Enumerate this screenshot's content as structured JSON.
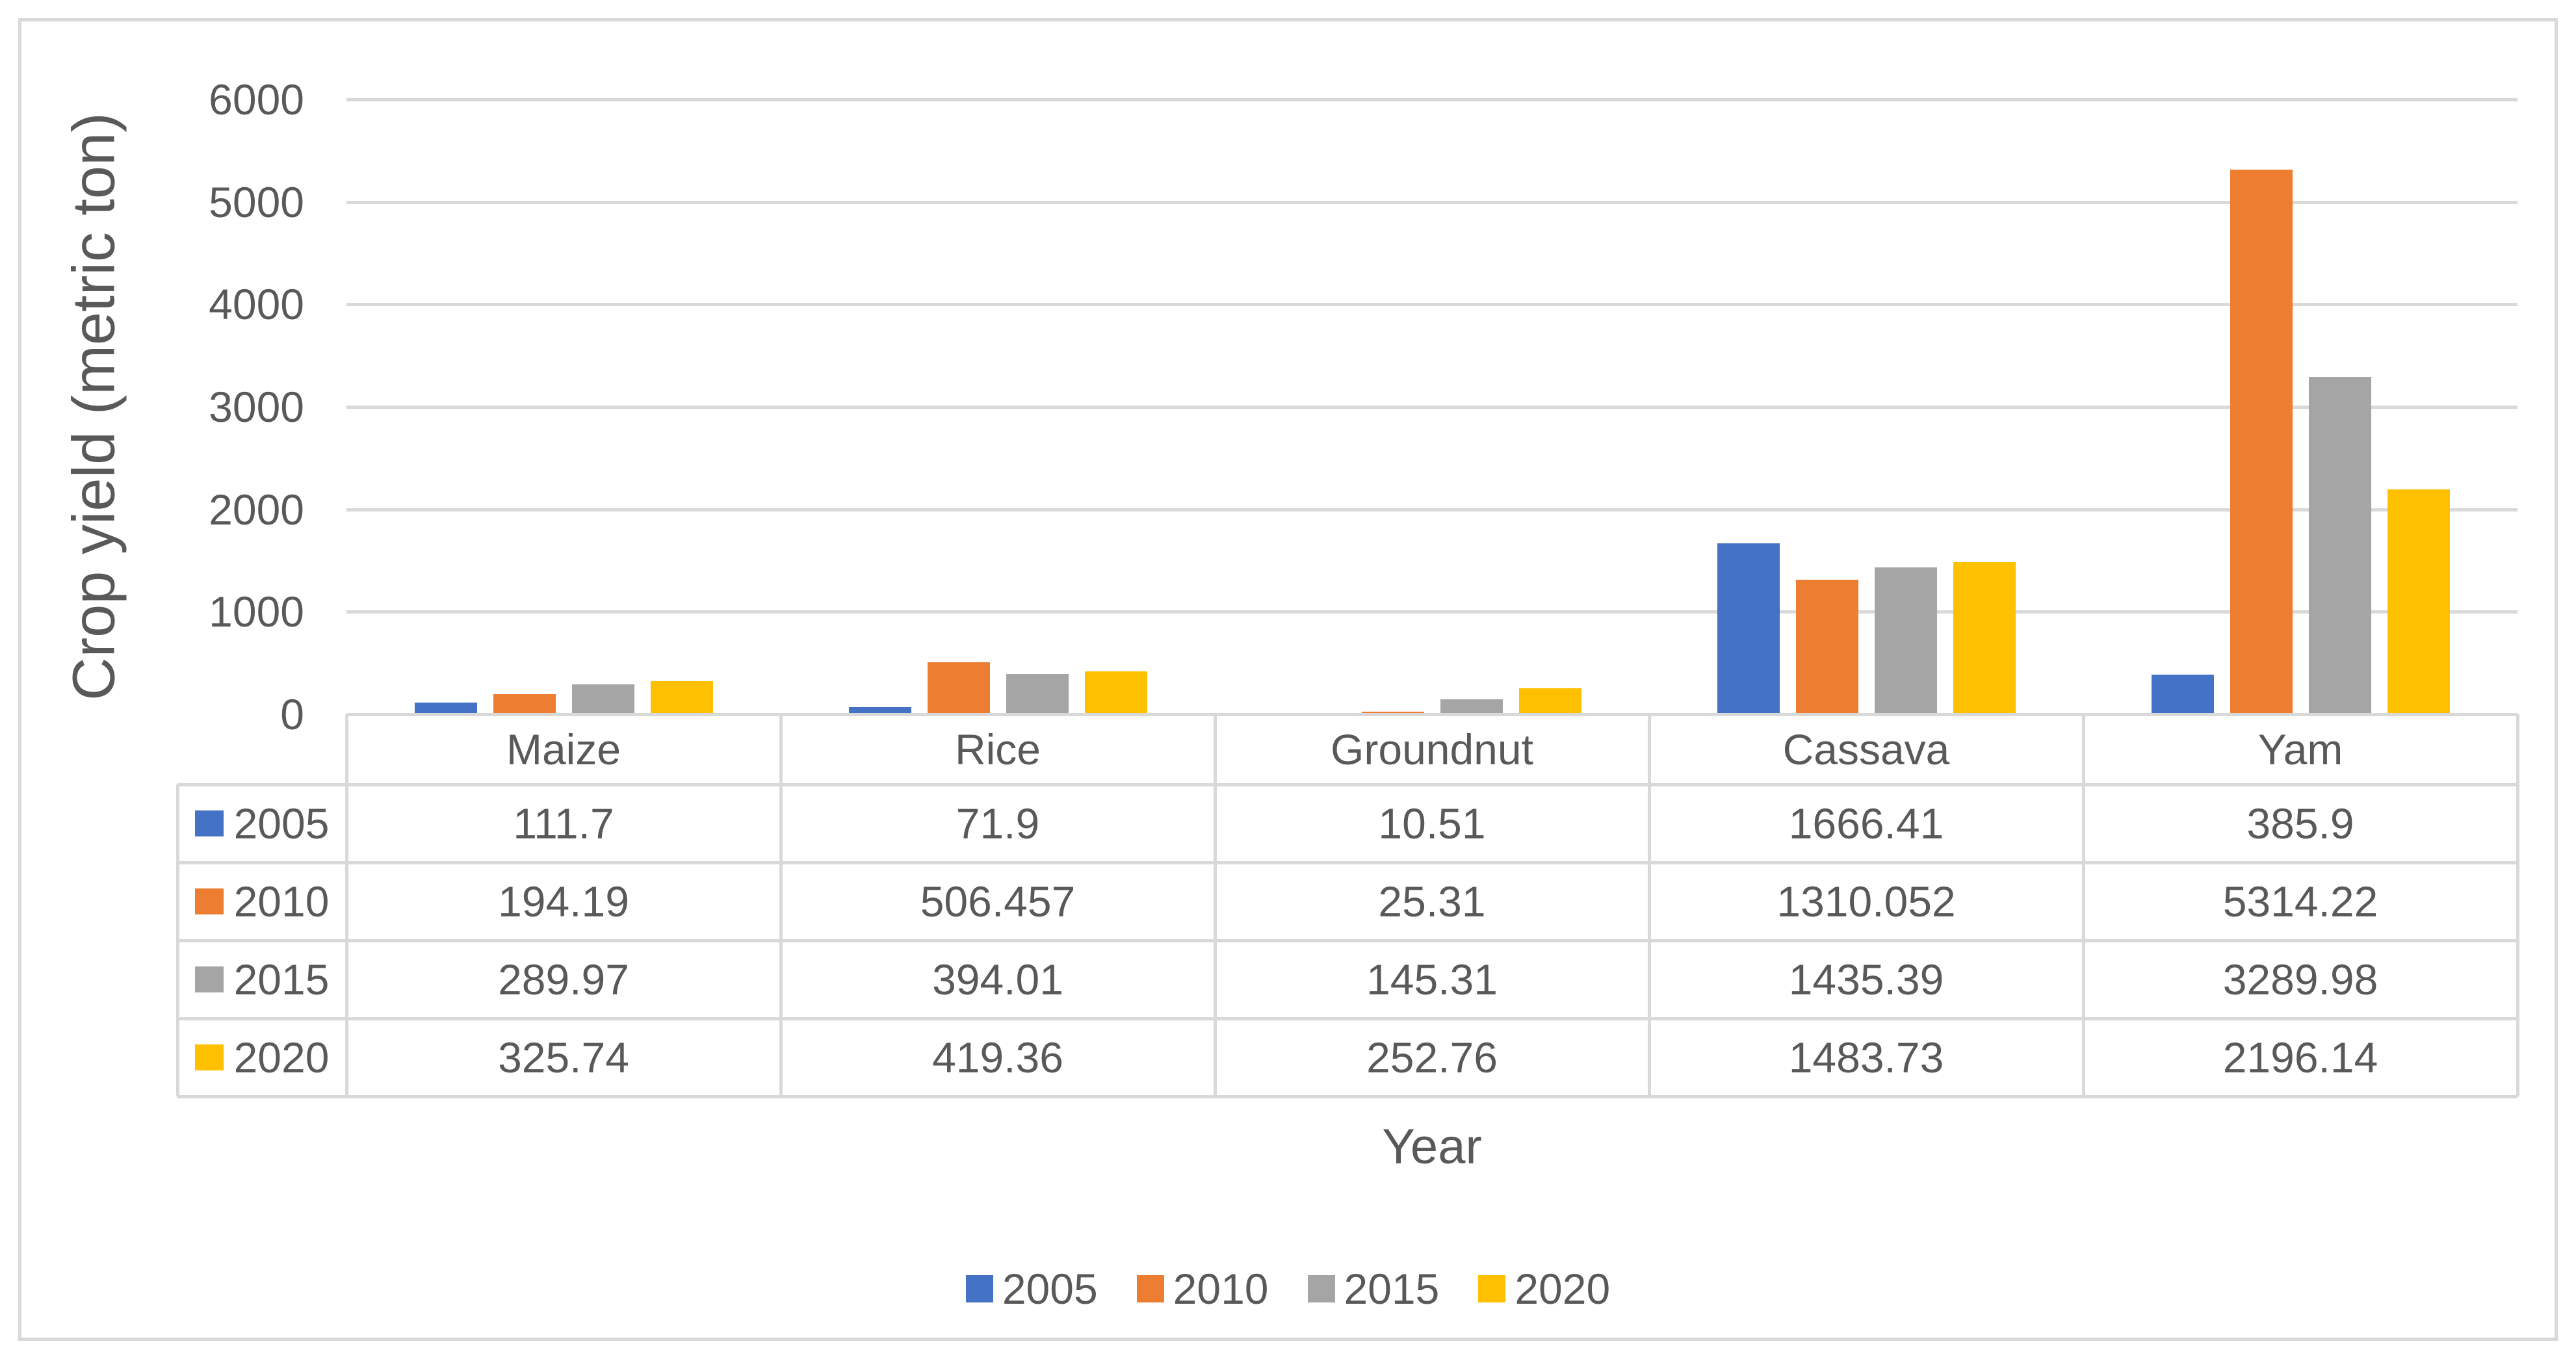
{
  "chart_data": {
    "type": "bar",
    "title": "",
    "xlabel": "Year",
    "ylabel": "Crop yield (metric ton)",
    "ylim": [
      0,
      6000
    ],
    "yticks": [
      0,
      1000,
      2000,
      3000,
      4000,
      5000,
      6000
    ],
    "grid": true,
    "legend_position": "bottom",
    "has_data_table": true,
    "categories": [
      "Maize",
      "Rice",
      "Groundnut",
      "Cassava",
      "Yam"
    ],
    "series": [
      {
        "name": "2005",
        "color": "#4472C4",
        "values": [
          111.7,
          71.9,
          10.51,
          1666.41,
          385.9
        ]
      },
      {
        "name": "2010",
        "color": "#ED7D31",
        "values": [
          194.19,
          506.457,
          25.31,
          1310.052,
          5314.22
        ]
      },
      {
        "name": "2015",
        "color": "#A5A5A5",
        "values": [
          289.97,
          394.01,
          145.31,
          1435.39,
          3289.98
        ]
      },
      {
        "name": "2020",
        "color": "#FFC000",
        "values": [
          325.74,
          419.36,
          252.76,
          1483.73,
          2196.14
        ]
      }
    ]
  },
  "colors": {
    "text": "#595959",
    "gridline": "#D9D9D9",
    "border": "#D9D9D9",
    "background": "#FFFFFF"
  }
}
